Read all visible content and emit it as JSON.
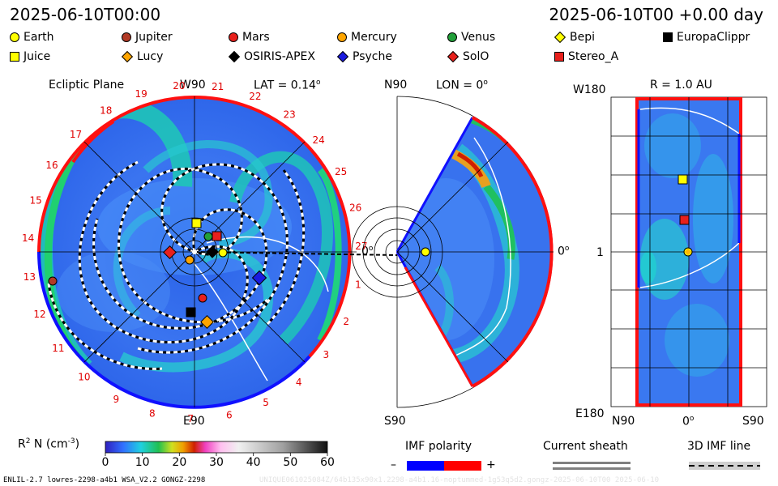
{
  "header": {
    "date_left": "2025-06-10T00:00",
    "date_right": "2025-06-10T00 +0.00 day"
  },
  "legend": {
    "items": [
      {
        "label": "Earth",
        "shape": "circle",
        "color": "#ffff00",
        "icon": "earth-circle-icon"
      },
      {
        "label": "Jupiter",
        "shape": "circle",
        "color": "#b23a26",
        "icon": "jupiter-circle-icon"
      },
      {
        "label": "Mars",
        "shape": "circle",
        "color": "#e8201c",
        "icon": "mars-circle-icon"
      },
      {
        "label": "Mercury",
        "shape": "circle",
        "color": "#ffa500",
        "icon": "mercury-circle-icon"
      },
      {
        "label": "Venus",
        "shape": "circle",
        "color": "#22a03a",
        "icon": "venus-circle-icon"
      },
      {
        "label": "Bepi",
        "shape": "diamond",
        "color": "#ffff00",
        "icon": "bepi-diamond-icon"
      },
      {
        "label": "EuropaClippr",
        "shape": "square",
        "color": "#000000",
        "icon": "europa-clipper-square-icon"
      },
      {
        "label": "Juice",
        "shape": "square",
        "color": "#ffff00",
        "icon": "juice-square-icon"
      },
      {
        "label": "Lucy",
        "shape": "diamond",
        "color": "#ffa500",
        "icon": "lucy-diamond-icon"
      },
      {
        "label": "OSIRIS-APEX",
        "shape": "diamond",
        "color": "#000000",
        "icon": "osiris-apex-diamond-icon"
      },
      {
        "label": "Psyche",
        "shape": "diamond",
        "color": "#1a1ae0",
        "icon": "psyche-diamond-icon"
      },
      {
        "label": "SolO",
        "shape": "diamond",
        "color": "#e8201c",
        "icon": "solo-diamond-icon"
      },
      {
        "label": "Stereo_A",
        "shape": "square",
        "color": "#e8201c",
        "icon": "stereo-a-square-icon"
      }
    ]
  },
  "panels": {
    "ecliptic": {
      "title": "Ecliptic Plane",
      "top_label": "W90",
      "lat_label": "LAT = 0.14",
      "lat_superscript": "o",
      "bottom_label": "E90",
      "zero_label": "0",
      "zero_superscript": "o",
      "carrington_ticks": [
        "12",
        "13",
        "14",
        "15",
        "16",
        "17",
        "18",
        "19",
        "20",
        "21",
        "22",
        "23",
        "24",
        "25",
        "26",
        "27",
        "1",
        "2",
        "3",
        "4",
        "5",
        "6",
        "7",
        "8",
        "9",
        "10",
        "11"
      ]
    },
    "meridional": {
      "top_label": "N90",
      "lon_label": "LON = 0",
      "lon_superscript": "o",
      "right_label": "0",
      "right_superscript": "o",
      "bottom_label": "S90"
    },
    "latlon": {
      "radius_label": "R = 1.0 AU",
      "top_left_label": "W180",
      "mid_left_label": "1",
      "bottom_left_label": "E180",
      "bottom_labels": [
        "N90",
        "0",
        "S90"
      ],
      "bottom_zero_superscript": "o"
    }
  },
  "colorbar": {
    "label_prefix": "R",
    "label_superscript": "2",
    "label_suffix": " N (cm",
    "label_unit_superscript": "-3",
    "label_close": ")",
    "ticks": [
      "0",
      "10",
      "20",
      "30",
      "40",
      "50",
      "60"
    ]
  },
  "imf": {
    "title": "IMF polarity",
    "minus": "–",
    "plus": "+",
    "negative_color": "#0000ff",
    "positive_color": "#ff0000"
  },
  "current_sheath": {
    "title": "Current sheath"
  },
  "imf_line": {
    "title": "3D IMF line"
  },
  "footer": {
    "model_text": "ENLIL-2.7 lowres-2298-a4b1 WSA_V2.2 GONGZ-2298",
    "faint_text": "UNIQUE061025084Z/64b135x90x1.2298-a4b1.16-noptummed-1g53q5d2.gongz-2025-06-10T00 2025-06-10"
  }
}
